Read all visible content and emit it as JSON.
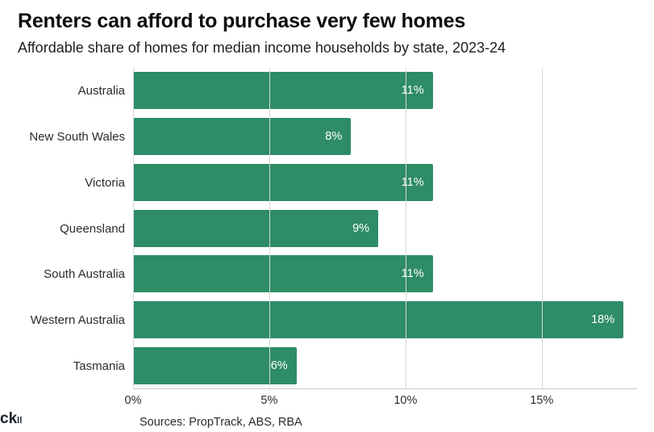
{
  "header": {
    "title": "Renters can afford to purchase very few homes",
    "subtitle": "Affordable share of homes for median income households by state, 2023-24"
  },
  "chart_data": {
    "type": "bar",
    "orientation": "horizontal",
    "title": "Renters can afford to purchase very few homes",
    "subtitle": "Affordable share of homes for median income households by state, 2023-24",
    "categories": [
      "Australia",
      "New South Wales",
      "Victoria",
      "Queensland",
      "South Australia",
      "Western Australia",
      "Tasmania"
    ],
    "values": [
      11,
      8,
      11,
      9,
      11,
      18,
      6
    ],
    "value_labels": [
      "11%",
      "8%",
      "11%",
      "9%",
      "11%",
      "18%",
      "6%"
    ],
    "xlabel": "",
    "ylabel": "",
    "xlim": [
      0,
      18.5
    ],
    "xticks": [
      0,
      5,
      10,
      15
    ],
    "xtick_labels": [
      "0%",
      "5%",
      "10%",
      "15%"
    ],
    "grid": "vertical",
    "bar_color": "#2e8c66",
    "value_label_color": "#ffffff",
    "legend": "none"
  },
  "footer": {
    "source": "Sources: PropTrack, ABS, RBA",
    "logo_fragment": "ck",
    "logo_sub": "ll"
  },
  "colors": {
    "bar_green": "#2e8c66",
    "gridline": "#d8d8d8",
    "text_dark": "#0d0d0d"
  }
}
